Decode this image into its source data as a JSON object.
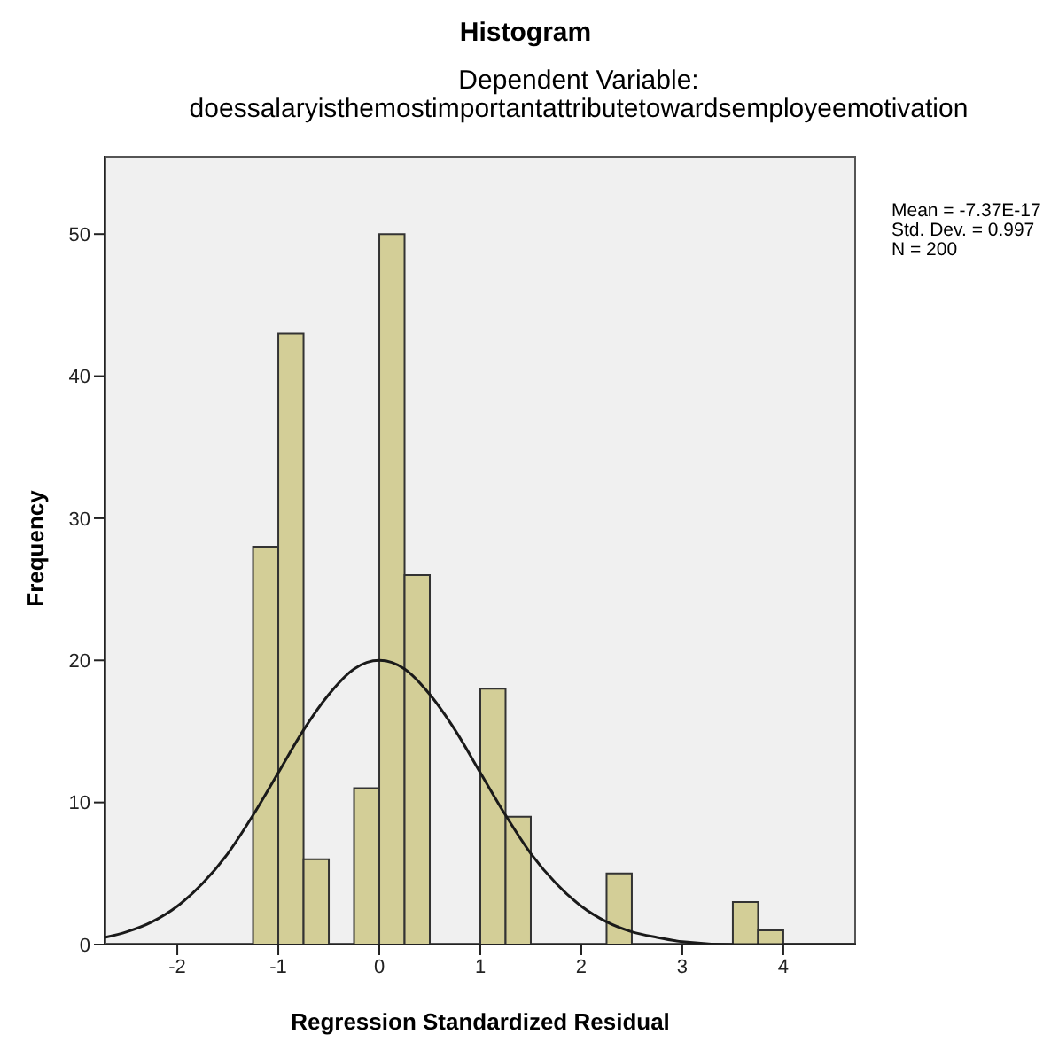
{
  "chart_data": {
    "type": "histogram",
    "title": "Histogram",
    "subtitle": "Dependent Variable: doessalaryisthemostimportantattributetowardsemployeemotivation",
    "xlabel": "Regression Standardized Residual",
    "ylabel": "Frequency",
    "bins": [
      -1.25,
      -1,
      -0.75,
      -0.5,
      -0.25,
      0,
      0.25,
      0.5,
      0.75,
      1,
      1.25,
      1.5,
      1.75,
      2,
      2.25,
      2.5,
      2.75,
      3,
      3.25,
      3.5,
      3.75,
      4
    ],
    "values": [
      28,
      43,
      6,
      0,
      11,
      50,
      26,
      0,
      0,
      18,
      9,
      0,
      0,
      0,
      5,
      0,
      0,
      0,
      0,
      3,
      1
    ],
    "color": "#d3ce97",
    "series": [
      {
        "type": "line",
        "color": "#1a1a1a",
        "x": [
          -2.72,
          -2.5,
          -2.25,
          -2,
          -1.75,
          -1.5,
          -1.25,
          -1,
          -0.75,
          -0.5,
          -0.25,
          0,
          0.25,
          0.5,
          0.75,
          1,
          1.25,
          1.5,
          1.75,
          2,
          2.25,
          2.5,
          2.75,
          3,
          3.5,
          4,
          4.72
        ],
        "values": [
          0.5,
          0.9,
          1.6,
          2.7,
          4.3,
          6.4,
          9.1,
          12.1,
          15.1,
          17.6,
          19.4,
          20,
          19.4,
          17.6,
          15.1,
          12.1,
          9.1,
          6.4,
          4.3,
          2.7,
          1.6,
          0.9,
          0.5,
          0.2,
          0,
          0,
          0
        ]
      }
    ],
    "xlim": [
      -2.72,
      4.72
    ],
    "xticks": [
      -2,
      -1,
      0,
      1,
      2,
      3,
      4
    ],
    "ylim": [
      0,
      55.5
    ],
    "yticks": [
      0,
      10,
      20,
      30,
      40,
      50
    ],
    "grid": false,
    "legend": false,
    "marker": "none",
    "annotations": [
      "Mean = -7.37E-17\nStd. Dev. = 0.997\nN = 200"
    ]
  }
}
